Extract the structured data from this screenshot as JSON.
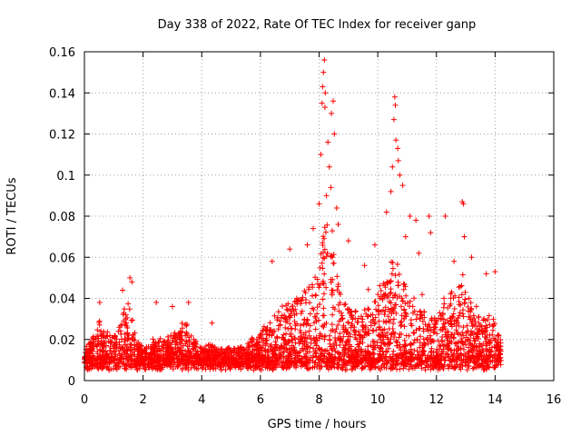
{
  "chart_data": {
    "type": "scatter",
    "title": "Day 338 of 2022, Rate Of TEC Index for receiver ganp",
    "xlabel": "GPS time / hours",
    "ylabel": "ROTI / TECUs",
    "xlim": [
      0,
      16
    ],
    "ylim": [
      0,
      0.16
    ],
    "xticks": [
      0,
      2,
      4,
      6,
      8,
      10,
      12,
      14,
      16
    ],
    "yticks": [
      0,
      0.02,
      0.04,
      0.06,
      0.08,
      0.1,
      0.12,
      0.14,
      0.16
    ],
    "xtick_labels": [
      "0",
      "2",
      "4",
      "6",
      "8",
      "10",
      "12",
      "14",
      "16"
    ],
    "ytick_labels": [
      "0",
      "0.02",
      "0.04",
      "0.06",
      "0.08",
      "0.1",
      "0.12",
      "0.14",
      "0.16"
    ],
    "grid": true,
    "marker": "+",
    "color": "#ff0000",
    "series": [
      {
        "name": "ROTI",
        "envelope": [
          [
            0.0,
            0.014
          ],
          [
            0.25,
            0.02
          ],
          [
            0.5,
            0.03
          ],
          [
            0.75,
            0.024
          ],
          [
            1.0,
            0.022
          ],
          [
            1.25,
            0.03
          ],
          [
            1.5,
            0.04
          ],
          [
            1.75,
            0.022
          ],
          [
            2.0,
            0.016
          ],
          [
            2.25,
            0.018
          ],
          [
            2.5,
            0.02
          ],
          [
            2.75,
            0.02
          ],
          [
            3.0,
            0.024
          ],
          [
            3.25,
            0.026
          ],
          [
            3.5,
            0.028
          ],
          [
            3.75,
            0.02
          ],
          [
            4.0,
            0.016
          ],
          [
            4.25,
            0.018
          ],
          [
            4.5,
            0.016
          ],
          [
            4.75,
            0.016
          ],
          [
            5.0,
            0.016
          ],
          [
            5.25,
            0.016
          ],
          [
            5.5,
            0.018
          ],
          [
            5.75,
            0.022
          ],
          [
            6.0,
            0.024
          ],
          [
            6.25,
            0.028
          ],
          [
            6.5,
            0.032
          ],
          [
            6.75,
            0.036
          ],
          [
            7.0,
            0.04
          ],
          [
            7.25,
            0.04
          ],
          [
            7.5,
            0.044
          ],
          [
            7.75,
            0.048
          ],
          [
            8.0,
            0.06
          ],
          [
            8.25,
            0.08
          ],
          [
            8.5,
            0.06
          ],
          [
            8.75,
            0.04
          ],
          [
            9.0,
            0.036
          ],
          [
            9.25,
            0.034
          ],
          [
            9.5,
            0.034
          ],
          [
            9.75,
            0.036
          ],
          [
            10.0,
            0.046
          ],
          [
            10.25,
            0.052
          ],
          [
            10.5,
            0.06
          ],
          [
            10.75,
            0.056
          ],
          [
            11.0,
            0.044
          ],
          [
            11.25,
            0.04
          ],
          [
            11.5,
            0.036
          ],
          [
            11.75,
            0.032
          ],
          [
            12.0,
            0.03
          ],
          [
            12.25,
            0.04
          ],
          [
            12.5,
            0.044
          ],
          [
            12.75,
            0.048
          ],
          [
            13.0,
            0.044
          ],
          [
            13.25,
            0.04
          ],
          [
            13.5,
            0.036
          ],
          [
            13.75,
            0.034
          ],
          [
            14.0,
            0.03
          ],
          [
            14.15,
            0.022
          ]
        ],
        "peaks": [
          [
            8.18,
            0.156
          ],
          [
            8.15,
            0.15
          ],
          [
            8.12,
            0.143
          ],
          [
            8.21,
            0.14
          ],
          [
            8.2,
            0.133
          ],
          [
            8.1,
            0.135
          ],
          [
            8.48,
            0.136
          ],
          [
            8.42,
            0.13
          ],
          [
            8.52,
            0.12
          ],
          [
            8.3,
            0.116
          ],
          [
            8.06,
            0.11
          ],
          [
            8.35,
            0.104
          ],
          [
            8.4,
            0.094
          ],
          [
            8.25,
            0.09
          ],
          [
            8.6,
            0.084
          ],
          [
            8.0,
            0.086
          ],
          [
            10.58,
            0.138
          ],
          [
            10.6,
            0.134
          ],
          [
            10.55,
            0.127
          ],
          [
            10.62,
            0.117
          ],
          [
            10.68,
            0.113
          ],
          [
            10.7,
            0.107
          ],
          [
            10.75,
            0.1
          ],
          [
            10.5,
            0.104
          ],
          [
            10.85,
            0.095
          ],
          [
            10.45,
            0.092
          ],
          [
            10.3,
            0.082
          ],
          [
            11.1,
            0.08
          ],
          [
            11.3,
            0.078
          ],
          [
            11.75,
            0.08
          ],
          [
            12.3,
            0.08
          ],
          [
            12.88,
            0.087
          ],
          [
            12.92,
            0.086
          ],
          [
            12.95,
            0.07
          ],
          [
            11.8,
            0.072
          ],
          [
            7.6,
            0.066
          ],
          [
            7.8,
            0.074
          ],
          [
            8.65,
            0.076
          ],
          [
            9.0,
            0.068
          ],
          [
            6.4,
            0.058
          ],
          [
            7.0,
            0.064
          ],
          [
            1.55,
            0.05
          ],
          [
            1.62,
            0.048
          ],
          [
            0.52,
            0.038
          ],
          [
            1.3,
            0.044
          ],
          [
            3.55,
            0.038
          ],
          [
            2.45,
            0.038
          ],
          [
            3.0,
            0.036
          ],
          [
            4.35,
            0.028
          ],
          [
            13.7,
            0.052
          ],
          [
            14.0,
            0.053
          ],
          [
            12.6,
            0.058
          ],
          [
            13.2,
            0.06
          ],
          [
            9.55,
            0.056
          ],
          [
            9.9,
            0.066
          ],
          [
            11.4,
            0.062
          ],
          [
            10.95,
            0.07
          ]
        ],
        "approximate_points": 12000,
        "x_range_observed": [
          0.0,
          14.2
        ]
      }
    ]
  }
}
